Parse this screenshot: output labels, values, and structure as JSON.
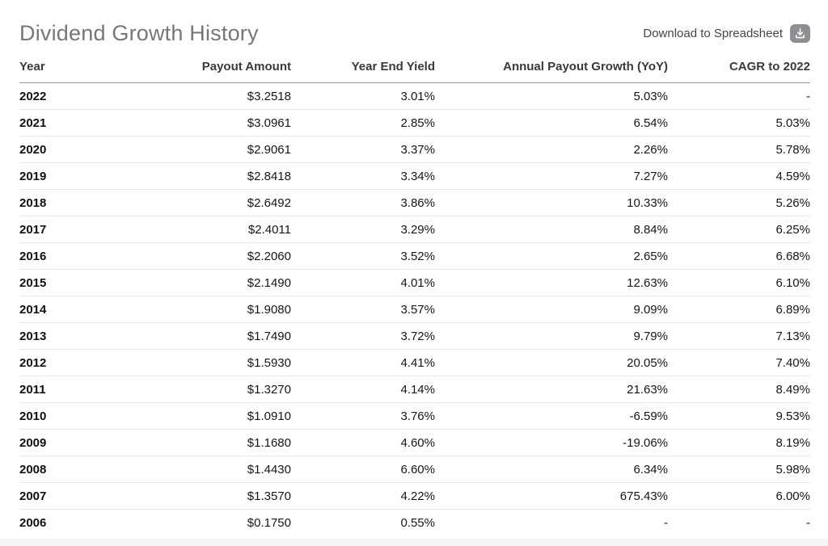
{
  "page": {
    "title": "Dividend Growth History"
  },
  "toolbar": {
    "download_label": "Download to Spreadsheet",
    "download_icon": "download-icon"
  },
  "colors": {
    "title_text": "#77777a",
    "header_text": "#3a3a3c",
    "body_text": "#161617",
    "header_rule": "#95959a",
    "row_rule": "#e9e9ea",
    "download_badge_bg": "#8e8e93",
    "download_glyph": "#ffffff",
    "page_bg": "#ffffff",
    "bottom_strip_bg": "#f4f4f6"
  },
  "table": {
    "columns": [
      "Year",
      "Payout Amount",
      "Year End Yield",
      "Annual Payout Growth (YoY)",
      "CAGR to 2022"
    ],
    "rows": [
      [
        "2022",
        "$3.2518",
        "3.01%",
        "5.03%",
        "-"
      ],
      [
        "2021",
        "$3.0961",
        "2.85%",
        "6.54%",
        "5.03%"
      ],
      [
        "2020",
        "$2.9061",
        "3.37%",
        "2.26%",
        "5.78%"
      ],
      [
        "2019",
        "$2.8418",
        "3.34%",
        "7.27%",
        "4.59%"
      ],
      [
        "2018",
        "$2.6492",
        "3.86%",
        "10.33%",
        "5.26%"
      ],
      [
        "2017",
        "$2.4011",
        "3.29%",
        "8.84%",
        "6.25%"
      ],
      [
        "2016",
        "$2.2060",
        "3.52%",
        "2.65%",
        "6.68%"
      ],
      [
        "2015",
        "$2.1490",
        "4.01%",
        "12.63%",
        "6.10%"
      ],
      [
        "2014",
        "$1.9080",
        "3.57%",
        "9.09%",
        "6.89%"
      ],
      [
        "2013",
        "$1.7490",
        "3.72%",
        "9.79%",
        "7.13%"
      ],
      [
        "2012",
        "$1.5930",
        "4.41%",
        "20.05%",
        "7.40%"
      ],
      [
        "2011",
        "$1.3270",
        "4.14%",
        "21.63%",
        "8.49%"
      ],
      [
        "2010",
        "$1.0910",
        "3.76%",
        "-6.59%",
        "9.53%"
      ],
      [
        "2009",
        "$1.1680",
        "4.60%",
        "-19.06%",
        "8.19%"
      ],
      [
        "2008",
        "$1.4430",
        "6.60%",
        "6.34%",
        "5.98%"
      ],
      [
        "2007",
        "$1.3570",
        "4.22%",
        "675.43%",
        "6.00%"
      ],
      [
        "2006",
        "$0.1750",
        "0.55%",
        "-",
        "-"
      ]
    ]
  }
}
